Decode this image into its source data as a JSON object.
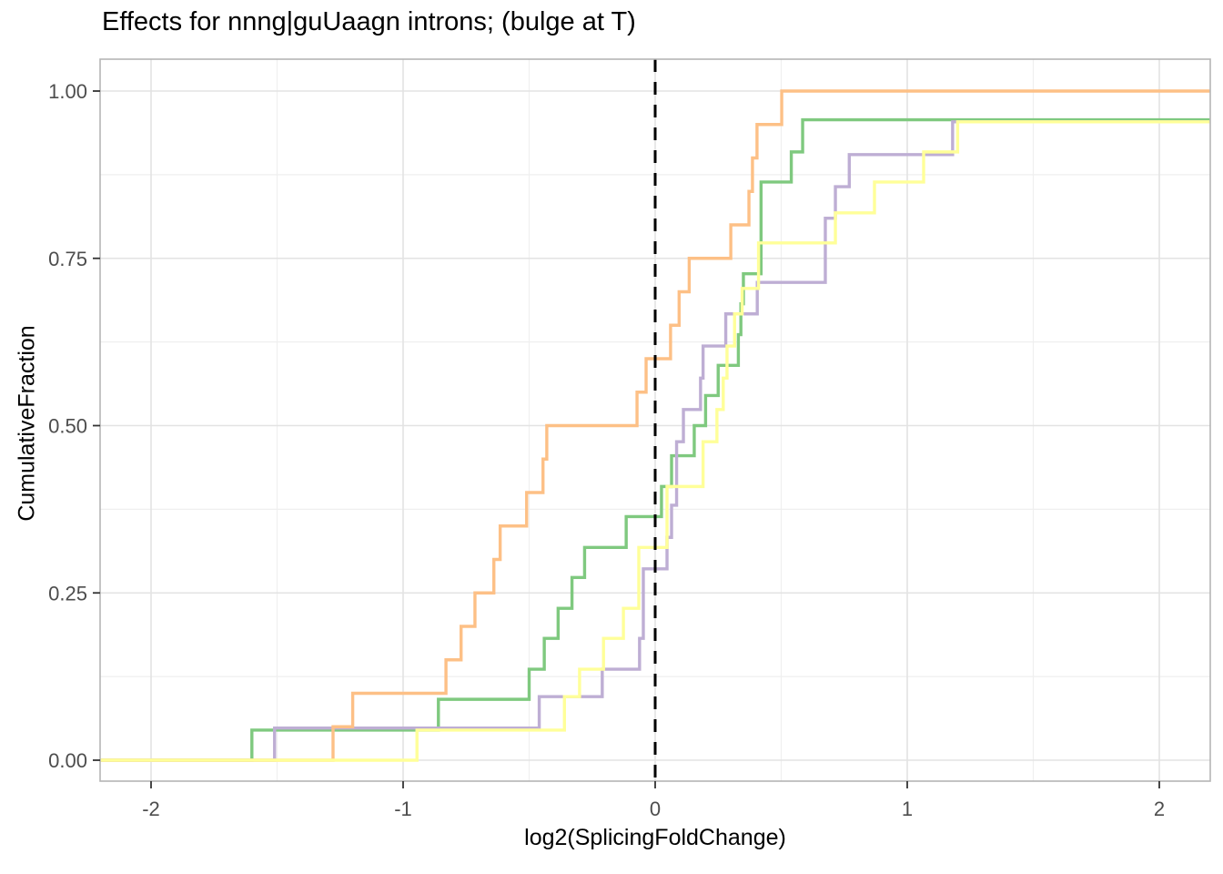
{
  "title": "Effects for nnng|guUaagn introns; (bulge at T)",
  "chart_data": {
    "type": "line",
    "subtype": "ecdf-step",
    "title": "Effects for nnng|guUaagn introns; (bulge at T)",
    "xlabel": "log2(SplicingFoldChange)",
    "ylabel": "CumulativeFraction",
    "xlim": [
      -2.2,
      2.2
    ],
    "ylim": [
      -0.031,
      1.048
    ],
    "grid": true,
    "legend": "none",
    "x_ticks": [
      {
        "v": -2,
        "label": "-2"
      },
      {
        "v": -1,
        "label": "-1"
      },
      {
        "v": 0,
        "label": "0"
      },
      {
        "v": 1,
        "label": "1"
      },
      {
        "v": 2,
        "label": "2"
      }
    ],
    "y_ticks": [
      {
        "v": 0.0,
        "label": "0.00"
      },
      {
        "v": 0.25,
        "label": "0.25"
      },
      {
        "v": 0.5,
        "label": "0.50"
      },
      {
        "v": 0.75,
        "label": "0.75"
      },
      {
        "v": 1.0,
        "label": "1.00"
      }
    ],
    "x_minor_ticks": [
      -1.5,
      -0.5,
      0.5,
      1.5
    ],
    "y_minor_ticks": [
      0.125,
      0.375,
      0.625,
      0.875
    ],
    "reference_line": {
      "x": 0,
      "style": "dashed",
      "color": "#000000"
    },
    "colors": {
      "grid_major": "#e3e3e3",
      "grid_minor": "#efefef",
      "panel_border": "#b5b5b5",
      "tick_mark": "#333333",
      "tick_label": "#4d4d4d",
      "title_text": "#000000"
    },
    "series": [
      {
        "name": "green",
        "color": "#7FC97F",
        "start_y": 0,
        "plateau_end_x": 2.2,
        "ecdf_steps": [
          [
            -1.6,
            0.045
          ],
          [
            -0.86,
            0.091
          ],
          [
            -0.5,
            0.136
          ],
          [
            -0.44,
            0.182
          ],
          [
            -0.385,
            0.227
          ],
          [
            -0.33,
            0.273
          ],
          [
            -0.28,
            0.318
          ],
          [
            -0.115,
            0.364
          ],
          [
            0.025,
            0.409
          ],
          [
            0.065,
            0.455
          ],
          [
            0.155,
            0.5
          ],
          [
            0.2,
            0.545
          ],
          [
            0.25,
            0.59
          ],
          [
            0.33,
            0.636
          ],
          [
            0.34,
            0.682
          ],
          [
            0.35,
            0.727
          ],
          [
            0.42,
            0.864
          ],
          [
            0.54,
            0.909
          ],
          [
            0.585,
            0.957
          ]
        ]
      },
      {
        "name": "purple",
        "color": "#BEAED4",
        "start_y": 0,
        "plateau_end_x": 2.2,
        "ecdf_steps": [
          [
            -1.51,
            0.048
          ],
          [
            -0.46,
            0.095
          ],
          [
            -0.21,
            0.136
          ],
          [
            -0.062,
            0.182
          ],
          [
            -0.047,
            0.286
          ],
          [
            0.047,
            0.333
          ],
          [
            0.065,
            0.381
          ],
          [
            0.085,
            0.476
          ],
          [
            0.112,
            0.524
          ],
          [
            0.18,
            0.571
          ],
          [
            0.19,
            0.619
          ],
          [
            0.28,
            0.667
          ],
          [
            0.405,
            0.714
          ],
          [
            0.675,
            0.81
          ],
          [
            0.715,
            0.857
          ],
          [
            0.77,
            0.905
          ],
          [
            1.18,
            0.954
          ]
        ]
      },
      {
        "name": "orange",
        "color": "#FDC086",
        "start_y": 0,
        "plateau_end_x": 2.2,
        "ecdf_steps": [
          [
            -1.278,
            0.05
          ],
          [
            -1.2,
            0.1
          ],
          [
            -0.83,
            0.15
          ],
          [
            -0.77,
            0.2
          ],
          [
            -0.715,
            0.25
          ],
          [
            -0.64,
            0.3
          ],
          [
            -0.615,
            0.35
          ],
          [
            -0.51,
            0.4
          ],
          [
            -0.445,
            0.45
          ],
          [
            -0.43,
            0.5
          ],
          [
            -0.072,
            0.55
          ],
          [
            -0.036,
            0.6
          ],
          [
            0.061,
            0.65
          ],
          [
            0.095,
            0.7
          ],
          [
            0.135,
            0.75
          ],
          [
            0.3,
            0.8
          ],
          [
            0.372,
            0.85
          ],
          [
            0.386,
            0.9
          ],
          [
            0.404,
            0.95
          ],
          [
            0.502,
            1.0
          ]
        ]
      },
      {
        "name": "yellow",
        "color": "#FFFF99",
        "start_y": 0,
        "plateau_end_x": 2.2,
        "ecdf_steps": [
          [
            -0.945,
            0.045
          ],
          [
            -0.36,
            0.095
          ],
          [
            -0.3,
            0.136
          ],
          [
            -0.205,
            0.182
          ],
          [
            -0.126,
            0.227
          ],
          [
            -0.065,
            0.318
          ],
          [
            0.047,
            0.409
          ],
          [
            0.19,
            0.476
          ],
          [
            0.245,
            0.524
          ],
          [
            0.27,
            0.571
          ],
          [
            0.285,
            0.619
          ],
          [
            0.315,
            0.667
          ],
          [
            0.345,
            0.705
          ],
          [
            0.41,
            0.773
          ],
          [
            0.715,
            0.818
          ],
          [
            0.87,
            0.864
          ],
          [
            1.065,
            0.909
          ],
          [
            1.2,
            0.954
          ]
        ]
      }
    ]
  }
}
